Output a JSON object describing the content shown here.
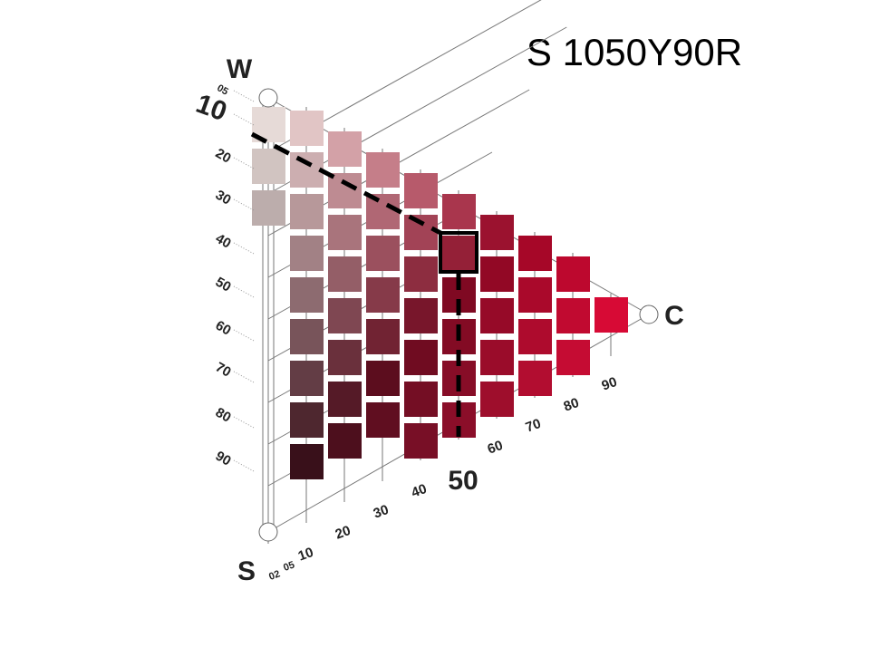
{
  "title": "S 1050Y90R",
  "corners": {
    "w": "W",
    "s": "S",
    "c": "C"
  },
  "blackness_scale": [
    "05",
    "10",
    "20",
    "30",
    "40",
    "50",
    "60",
    "70",
    "80",
    "90"
  ],
  "chromaticness_scale": [
    "02",
    "05",
    "10",
    "20",
    "30",
    "40",
    "50",
    "60",
    "70",
    "80",
    "90"
  ]
}
